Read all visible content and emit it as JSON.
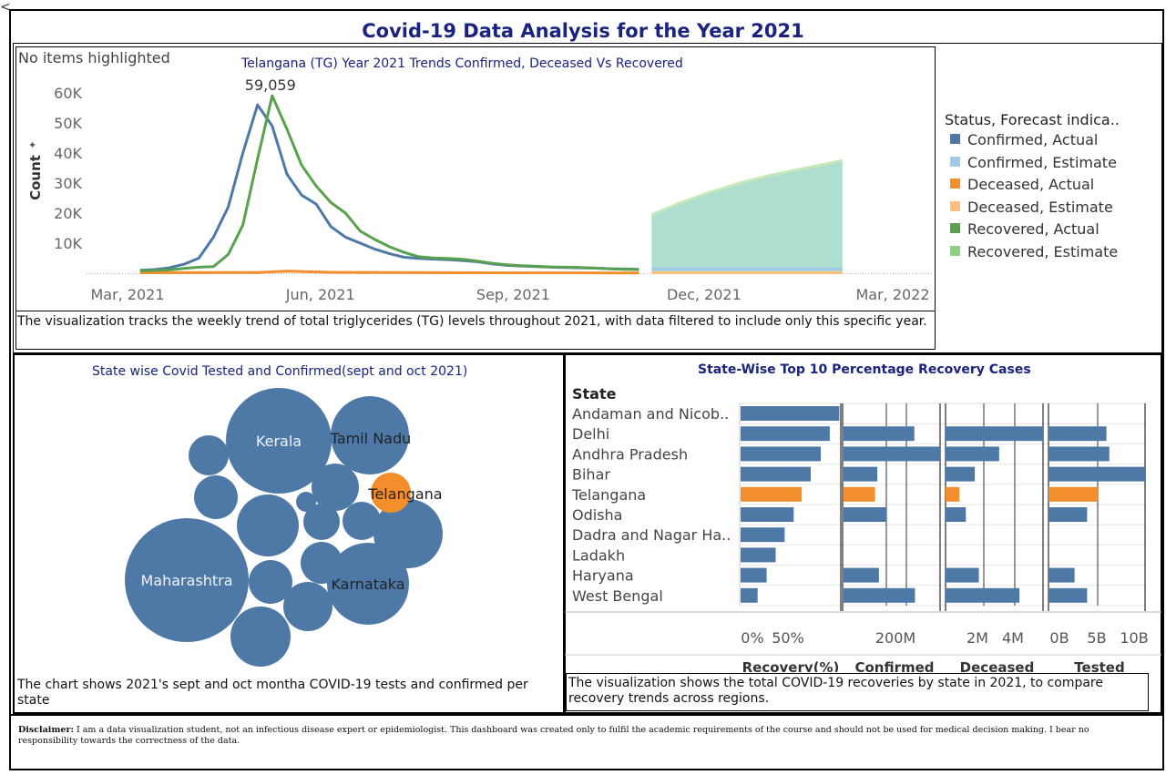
{
  "dashboard": {
    "title": "Covid-19 Data Analysis for the Year 2021",
    "corner_mark": "<",
    "disclaimer_label": "Disclaimer:",
    "disclaimer_text": " I am a data visualization student, not an infectious disease expert or epidemiologist. This dashboard was created only to fulfil the academic requirements of the course and should not be used for medical decision making. I bear no responsibility towards the correctness of the data."
  },
  "trend": {
    "highlight_text": "No items highlighted",
    "subtitle": "Telangana (TG) Year 2021  Trends Confirmed, Deceased  Vs Recovered",
    "caption": "The visualization tracks the weekly trend of total triglycerides (TG) levels throughout 2021, with data filtered to include only this specific year.",
    "legend_title": "Status, Forecast indica..",
    "legend": [
      {
        "label": "Confirmed, Actual",
        "color": "#4e79a7"
      },
      {
        "label": "Confirmed, Estimate",
        "color": "#a0cbe8"
      },
      {
        "label": "Deceased, Actual",
        "color": "#f28e2b"
      },
      {
        "label": "Deceased, Estimate",
        "color": "#ffbe7d"
      },
      {
        "label": "Recovered, Actual",
        "color": "#59a14f"
      },
      {
        "label": "Recovered, Estimate",
        "color": "#8cd17d"
      }
    ]
  },
  "bubble": {
    "subtitle": "State wise Covid Tested and Confirmed(sept and oct 2021)",
    "caption": "The chart shows 2021's sept and oct montha COVID-19 tests and confirmed per state"
  },
  "recovery": {
    "subtitle": "State-Wise Top 10 Percentage Recovery Cases",
    "caption": "The visualization shows the total COVID-19 recoveries by state in 2021, to compare recovery trends across regions."
  },
  "chart_data": [
    {
      "type": "line",
      "title": "Telangana (TG) Year 2021  Trends Confirmed, Deceased  Vs Recovered",
      "ylabel": "Count",
      "ylim": [
        0,
        60000
      ],
      "y_ticks": [
        "10K",
        "20K",
        "30K",
        "40K",
        "50K",
        "60K"
      ],
      "x_ticks": [
        "Mar, 2021",
        "Jun, 2021",
        "Sep, 2021",
        "Dec, 2021",
        "Mar, 2022"
      ],
      "peak_label": "59,059",
      "grid": false,
      "legend_position": "right",
      "series": [
        {
          "name": "Confirmed, Actual",
          "color": "#4e79a7",
          "x": [
            "2021-03-07",
            "2021-03-14",
            "2021-03-21",
            "2021-03-28",
            "2021-04-04",
            "2021-04-11",
            "2021-04-18",
            "2021-04-25",
            "2021-05-02",
            "2021-05-09",
            "2021-05-16",
            "2021-05-23",
            "2021-05-30",
            "2021-06-06",
            "2021-06-13",
            "2021-06-20",
            "2021-06-27",
            "2021-07-04",
            "2021-07-11",
            "2021-07-18",
            "2021-07-25",
            "2021-08-01",
            "2021-08-08",
            "2021-08-15",
            "2021-08-22",
            "2021-08-29",
            "2021-09-05",
            "2021-09-12",
            "2021-09-19",
            "2021-09-26",
            "2021-10-03",
            "2021-10-10",
            "2021-10-17",
            "2021-10-24",
            "2021-10-31"
          ],
          "y": [
            1000,
            1200,
            1800,
            3000,
            5000,
            12000,
            22000,
            40000,
            56000,
            49000,
            33000,
            26000,
            23000,
            15500,
            12000,
            10000,
            8000,
            6500,
            5300,
            4900,
            4700,
            4500,
            4200,
            3800,
            3100,
            2600,
            2400,
            2200,
            2000,
            1900,
            1800,
            1700,
            1500,
            1400,
            1300
          ]
        },
        {
          "name": "Recovered, Actual",
          "color": "#59a14f",
          "x": [
            "2021-03-07",
            "2021-03-14",
            "2021-03-21",
            "2021-03-28",
            "2021-04-04",
            "2021-04-11",
            "2021-04-18",
            "2021-04-25",
            "2021-05-02",
            "2021-05-09",
            "2021-05-16",
            "2021-05-23",
            "2021-05-30",
            "2021-06-06",
            "2021-06-13",
            "2021-06-20",
            "2021-06-27",
            "2021-07-04",
            "2021-07-11",
            "2021-07-18",
            "2021-07-25",
            "2021-08-01",
            "2021-08-08",
            "2021-08-15",
            "2021-08-22",
            "2021-08-29",
            "2021-09-05",
            "2021-09-12",
            "2021-09-19",
            "2021-09-26",
            "2021-10-03",
            "2021-10-10",
            "2021-10-17",
            "2021-10-24",
            "2021-10-31"
          ],
          "y": [
            800,
            900,
            1100,
            1600,
            2000,
            2200,
            6200,
            16000,
            38000,
            59059,
            48000,
            36000,
            29000,
            23500,
            20000,
            14000,
            11200,
            8800,
            6900,
            5500,
            5100,
            4900,
            4600,
            4000,
            3300,
            2800,
            2500,
            2300,
            2100,
            2000,
            1900,
            1700,
            1500,
            1300,
            1200
          ]
        },
        {
          "name": "Deceased, Actual",
          "color": "#f28e2b",
          "x": [
            "2021-03-07",
            "2021-04-04",
            "2021-05-02",
            "2021-05-16",
            "2021-06-06",
            "2021-07-04",
            "2021-08-01",
            "2021-09-05",
            "2021-10-03",
            "2021-10-31"
          ],
          "y": [
            150,
            180,
            250,
            700,
            300,
            200,
            150,
            120,
            110,
            100
          ]
        },
        {
          "name": "Recovered, Estimate",
          "color": "#8cd17d",
          "x": [
            "2021-11-06",
            "2021-11-20",
            "2021-12-04",
            "2021-12-18",
            "2022-01-01",
            "2022-01-15",
            "2022-01-29",
            "2022-02-05"
          ],
          "y": [
            19500,
            23500,
            27000,
            30000,
            32500,
            34500,
            36500,
            37500
          ]
        },
        {
          "name": "Confirmed, Estimate",
          "color": "#a0cbe8",
          "x": [
            "2021-11-06",
            "2021-12-04",
            "2022-01-01",
            "2022-02-05"
          ],
          "y": [
            1400,
            1400,
            1400,
            1400
          ]
        },
        {
          "name": "Deceased, Estimate",
          "color": "#ffbe7d",
          "x": [
            "2021-11-06",
            "2021-12-04",
            "2022-01-01",
            "2022-02-05"
          ],
          "y": [
            150,
            150,
            150,
            150
          ]
        }
      ]
    },
    {
      "type": "bubble",
      "title": "State wise Covid Tested and Confirmed(sept and oct 2021)",
      "highlight": "Telangana",
      "bubbles": [
        {
          "label": "Maharashtra",
          "size": 68,
          "color": "#4e79a7"
        },
        {
          "label": "Kerala",
          "size": 58,
          "color": "#4e79a7"
        },
        {
          "label": "Karnataka",
          "size": 45,
          "color": "#4e79a7"
        },
        {
          "label": "Tamil Nadu",
          "size": 43,
          "color": "#4e79a7"
        },
        {
          "label": "",
          "size": 38,
          "color": "#4e79a7"
        },
        {
          "label": "",
          "size": 34,
          "color": "#4e79a7"
        },
        {
          "label": "",
          "size": 33,
          "color": "#4e79a7"
        },
        {
          "label": "",
          "size": 27,
          "color": "#4e79a7"
        },
        {
          "label": "",
          "size": 26,
          "color": "#4e79a7"
        },
        {
          "label": "",
          "size": 24,
          "color": "#4e79a7"
        },
        {
          "label": "",
          "size": 24,
          "color": "#4e79a7"
        },
        {
          "label": "",
          "size": 23,
          "color": "#4e79a7"
        },
        {
          "label": "Telangana",
          "size": 22,
          "color": "#f28e2b"
        },
        {
          "label": "",
          "size": 22,
          "color": "#4e79a7"
        },
        {
          "label": "",
          "size": 21,
          "color": "#4e79a7"
        },
        {
          "label": "",
          "size": 20,
          "color": "#4e79a7"
        },
        {
          "label": "",
          "size": 11,
          "color": "#4e79a7"
        }
      ]
    },
    {
      "type": "bar",
      "title": "State-Wise Top 10 Percentage Recovery Cases",
      "category_header": "State",
      "categories": [
        "Andaman and Nicob..",
        "Delhi",
        "Andhra Pradesh",
        "Bihar",
        "Telangana",
        "Odisha",
        "Dadra and Nagar Ha..",
        "Ladakh",
        "Haryana",
        "West Bengal"
      ],
      "highlight": "Telangana",
      "colors": {
        "default": "#4e79a7",
        "highlight": "#f28e2b"
      },
      "series": [
        {
          "name": "Recovery(%)",
          "ticks": [
            "0%",
            "50%"
          ],
          "max": 100,
          "values": [
            98.5,
            89,
            80,
            70,
            61,
            53,
            44,
            35,
            26,
            17
          ]
        },
        {
          "name": "Confirmed",
          "ticks": [
            "200M"
          ],
          "max": 300000000,
          "values": [
            null,
            220000000,
            300000000,
            105000000,
            98000000,
            135000000,
            null,
            null,
            110000000,
            222000000
          ]
        },
        {
          "name": "Deceased",
          "ticks": [
            "2M",
            "4M"
          ],
          "max": 6000000,
          "values": [
            null,
            6000000,
            3300000,
            1800000,
            850000,
            1250000,
            null,
            null,
            2050000,
            4550000
          ]
        },
        {
          "name": "Tested",
          "ticks": [
            "0B",
            "5B",
            "10B"
          ],
          "max": 10000000000,
          "values": [
            null,
            6000000000,
            6300000000,
            10000000000,
            5100000000,
            4000000000,
            null,
            null,
            2700000000,
            4000000000
          ]
        }
      ]
    }
  ]
}
